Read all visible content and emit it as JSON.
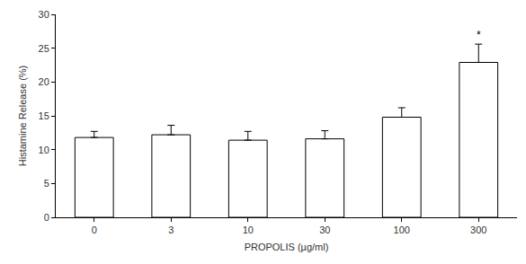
{
  "chart_data": {
    "type": "bar",
    "x_label": "PROPOLIS (µg/ml)",
    "y_label": "Histamine Release (%)",
    "categories": [
      "0",
      "3",
      "10",
      "30",
      "100",
      "300"
    ],
    "values": [
      11.8,
      12.2,
      11.4,
      11.6,
      14.8,
      22.9
    ],
    "errors": [
      0.9,
      1.4,
      1.3,
      1.2,
      1.4,
      2.7
    ],
    "color": "#ffffff",
    "ylim": [
      0,
      30
    ],
    "yticks": [
      0,
      5,
      10,
      15,
      20,
      25,
      30
    ],
    "grid": false,
    "annotations": [
      {
        "category": "300",
        "text": "*"
      }
    ]
  }
}
